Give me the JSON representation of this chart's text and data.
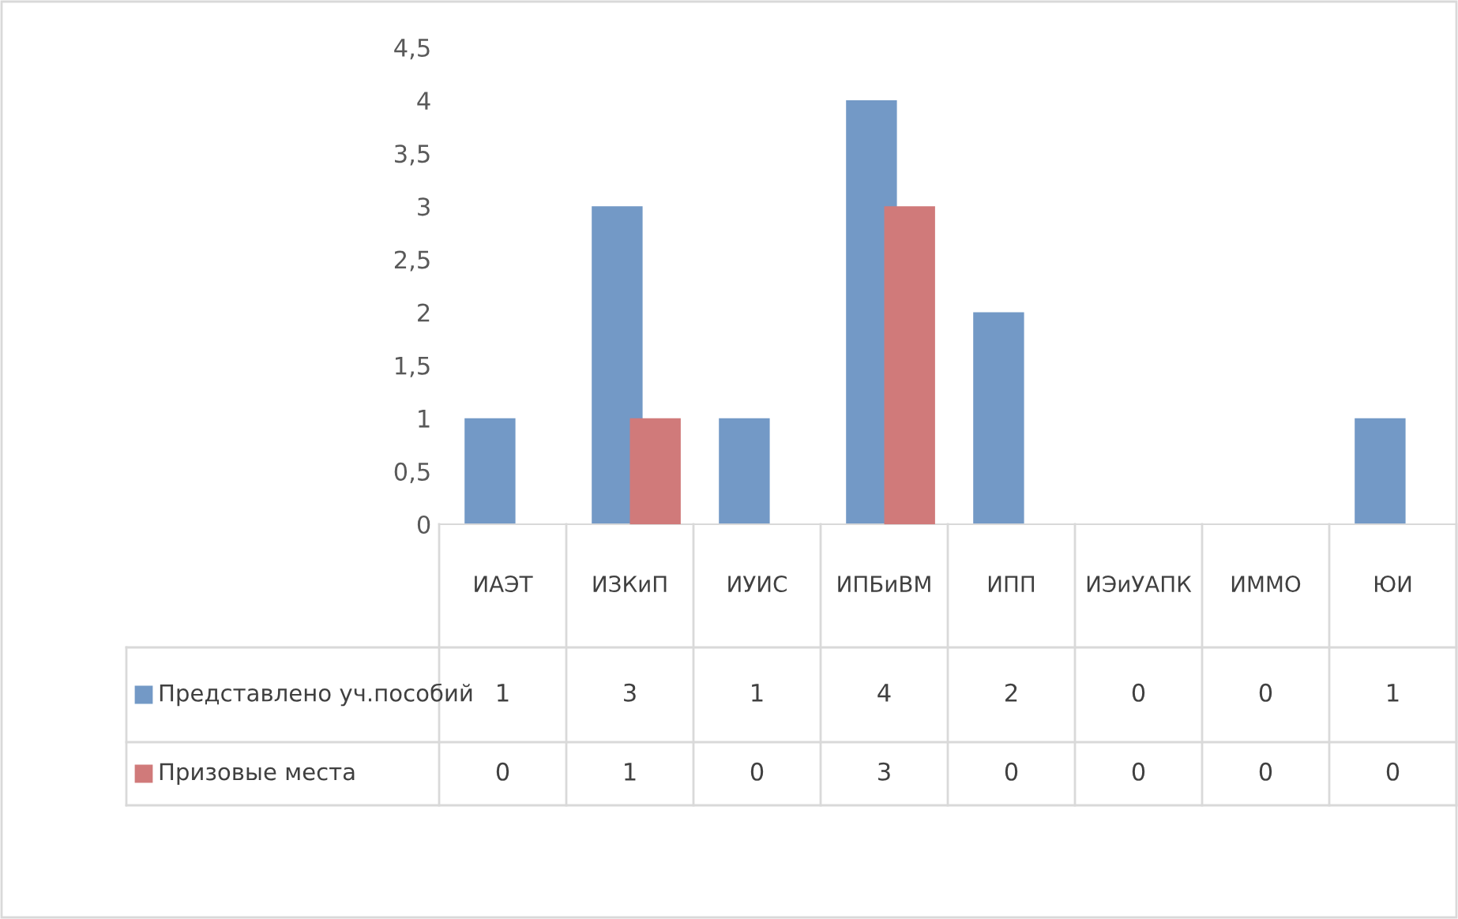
{
  "chart_data": {
    "type": "bar",
    "categories": [
      "ИАЭТ",
      "ИЗКиП",
      "ИУИС",
      "ИПБиВМ",
      "ИПП",
      "ИЭиУАПК",
      "ИММО",
      "ЮИ"
    ],
    "series": [
      {
        "name": "Представлено уч.пособий",
        "color": "#7399c6",
        "values": [
          1,
          3,
          1,
          4,
          2,
          0,
          0,
          1
        ]
      },
      {
        "name": "Призовые места",
        "color": "#d07a7a",
        "values": [
          0,
          1,
          0,
          3,
          0,
          0,
          0,
          0
        ]
      }
    ],
    "ylim": [
      0,
      4.5
    ],
    "yticks": [
      0,
      {
        "value": 0.5,
        "label": "0,5"
      },
      1,
      {
        "value": 1.5,
        "label": "1,5"
      },
      2,
      {
        "value": 2.5,
        "label": "2,5"
      },
      3,
      {
        "value": 3.5,
        "label": "3,5"
      },
      4,
      {
        "value": 4.5,
        "label": "4,5"
      }
    ],
    "grid": false,
    "data_labels": true,
    "legend": "bottom"
  }
}
